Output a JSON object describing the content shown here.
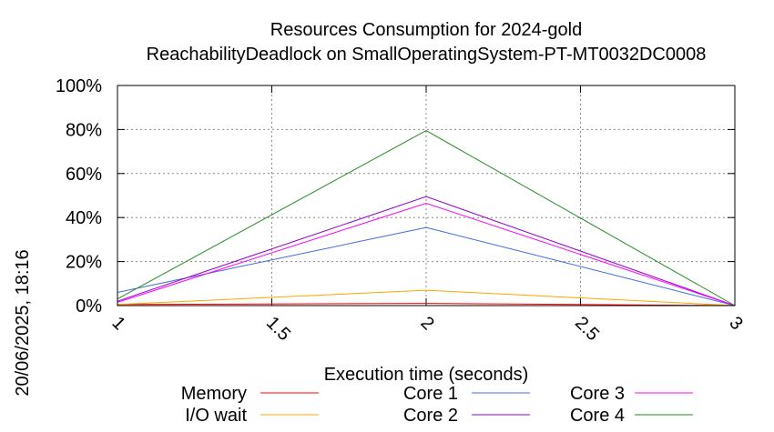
{
  "chart_data": {
    "type": "line",
    "title": "Resources Consumption for 2024-gold",
    "subtitle": "ReachabilityDeadlock on SmallOperatingSystem-PT-MT0032DC0008",
    "xlabel": "Execution time (seconds)",
    "ylabel": "",
    "xlim": [
      1,
      3
    ],
    "ylim": [
      0,
      100
    ],
    "x_ticks": [
      "1",
      "1.5",
      "2",
      "2.5",
      "3"
    ],
    "y_ticks": [
      "0%",
      "20%",
      "40%",
      "60%",
      "80%",
      "100%"
    ],
    "grid": true,
    "legend_position": "bottom",
    "timestamp": "20/06/2025, 18:16",
    "series": [
      {
        "name": "Memory",
        "color": "#ff0000",
        "x": [
          1,
          2,
          3
        ],
        "y": [
          0.5,
          1,
          0
        ]
      },
      {
        "name": "I/O wait",
        "color": "#ffa500",
        "x": [
          1,
          2,
          3
        ],
        "y": [
          0.5,
          7,
          0
        ]
      },
      {
        "name": "Core 1",
        "color": "#4169e1",
        "x": [
          1,
          2,
          3
        ],
        "y": [
          6,
          35.5,
          0
        ]
      },
      {
        "name": "Core 2",
        "color": "#9400d3",
        "x": [
          1,
          2,
          3
        ],
        "y": [
          2,
          49.5,
          0
        ]
      },
      {
        "name": "Core 3",
        "color": "#ff00ff",
        "x": [
          1,
          2,
          3
        ],
        "y": [
          1.5,
          46.5,
          0
        ]
      },
      {
        "name": "Core 4",
        "color": "#228b22",
        "x": [
          1,
          2,
          3
        ],
        "y": [
          3,
          79.5,
          0
        ]
      }
    ]
  }
}
